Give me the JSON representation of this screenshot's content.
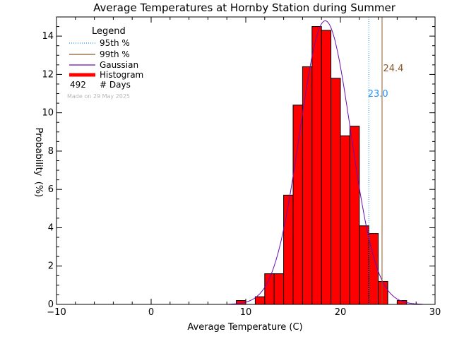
{
  "chart_data": {
    "type": "bar",
    "title": "Average Temperatures at Hornby Station during Summer",
    "xlabel": "Average Temperature (C)",
    "ylabel": "Probability",
    "ylabel_unit": "(%)",
    "xlim": [
      -10,
      30
    ],
    "ylim": [
      0,
      15
    ],
    "xticks": [
      "−10",
      "0",
      "10",
      "20",
      "30"
    ],
    "yticks": [
      "0",
      "2",
      "4",
      "6",
      "8",
      "10",
      "12",
      "14"
    ],
    "bin_width": 1,
    "bins": [
      {
        "x0": 9.0,
        "value": 0.2
      },
      {
        "x0": 11.0,
        "value": 0.4
      },
      {
        "x0": 12.0,
        "value": 1.6
      },
      {
        "x0": 13.0,
        "value": 1.6
      },
      {
        "x0": 14.0,
        "value": 5.7
      },
      {
        "x0": 15.0,
        "value": 10.4
      },
      {
        "x0": 16.0,
        "value": 12.4
      },
      {
        "x0": 17.0,
        "value": 14.5
      },
      {
        "x0": 18.0,
        "value": 14.3
      },
      {
        "x0": 19.0,
        "value": 11.8
      },
      {
        "x0": 20.0,
        "value": 8.8
      },
      {
        "x0": 21.0,
        "value": 9.3
      },
      {
        "x0": 22.0,
        "value": 4.1
      },
      {
        "x0": 23.0,
        "value": 3.7
      },
      {
        "x0": 24.0,
        "value": 1.2
      },
      {
        "x0": 26.0,
        "value": 0.2
      }
    ],
    "gaussian": {
      "mean": 18.4,
      "sd": 2.7,
      "peak": 14.8
    },
    "percentiles": {
      "p95": {
        "value": 23.0,
        "label": "23.0"
      },
      "p99": {
        "value": 24.4,
        "label": "24.4"
      }
    },
    "legend": {
      "title": "Legend",
      "placement": "top-left",
      "items": [
        {
          "label": "95th  %",
          "style": "dotted",
          "color": "#1e90ff"
        },
        {
          "label": "99th  %",
          "style": "solid",
          "color": "#8b5a2b"
        },
        {
          "label": "Gaussian",
          "style": "solid",
          "color": "#6a0dad"
        },
        {
          "label": "Histogram",
          "style": "thick",
          "color": "#ff0000"
        }
      ],
      "days_count": "492",
      "days_label": "# Days"
    },
    "stamp": "Made on 29 May 2025",
    "colors": {
      "histogram_fill": "#ff0000",
      "histogram_edge": "#000000",
      "gaussian": "#6a0dad",
      "p95": "#1e90ff",
      "p99": "#8b5a2b"
    }
  }
}
